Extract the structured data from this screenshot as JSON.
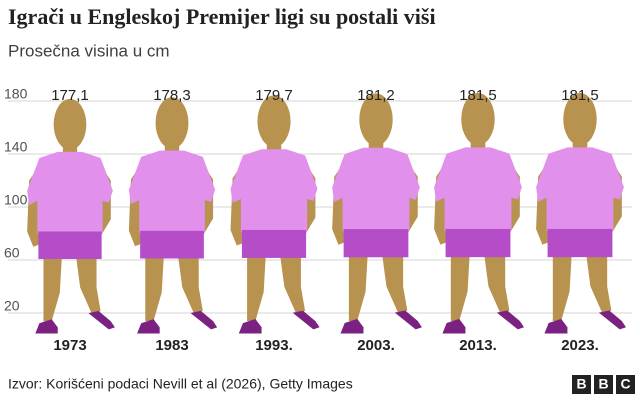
{
  "chart_data": {
    "type": "pictogram",
    "title": "Igrači u Engleskoj Premijer ligi su postali viši",
    "subtitle": "Prosečna visina u cm",
    "categories": [
      "1973",
      "1983",
      "1993.",
      "2003.",
      "2013.",
      "2023."
    ],
    "values": [
      177.1,
      178.3,
      179.7,
      181.2,
      181.5,
      181.5
    ],
    "value_labels": [
      "177,1",
      "178,3",
      "179,7",
      "181,2",
      "181,5",
      "181,5"
    ],
    "ylim": [
      0,
      180
    ],
    "yticks": [
      20,
      60,
      100,
      140,
      180
    ],
    "grid": true,
    "colors": {
      "skin": "#b8924f",
      "shirt": "#e190ec",
      "shorts": "#b54dc8",
      "shoes": "#7a2182"
    },
    "source": "Izvor: Korišćeni podaci Nevill et al (2026), Getty Images",
    "logo": [
      "B",
      "B",
      "C"
    ]
  }
}
